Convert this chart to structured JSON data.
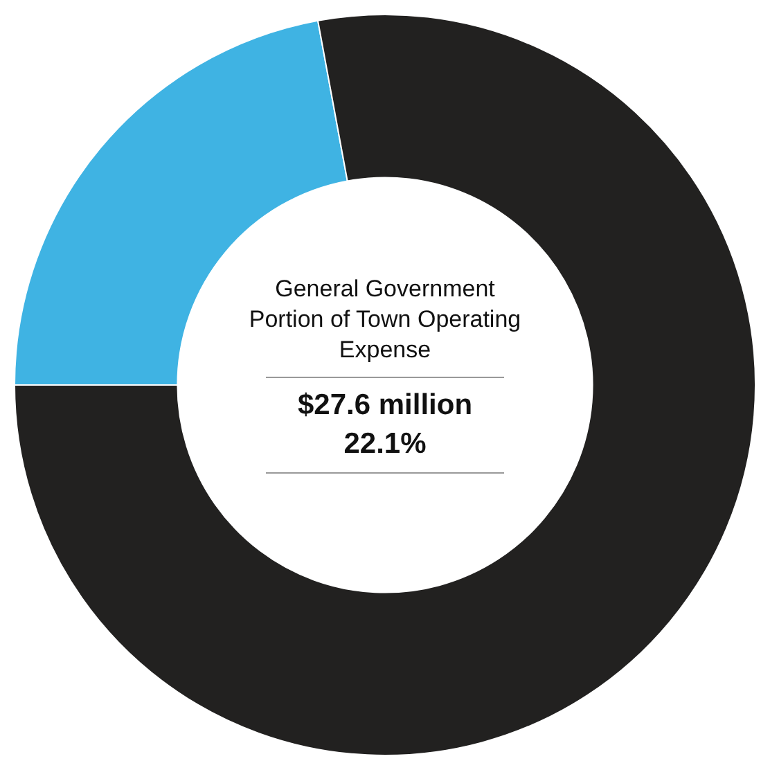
{
  "chart_data": {
    "type": "donut",
    "categories": [
      null,
      null
    ],
    "values": [
      22.1,
      77.9
    ],
    "colors": [
      "#3fb3e3",
      "#222120"
    ],
    "annotations": [
      "General Government Portion of Town Operating Expense",
      "$27.6 million",
      "22.1%"
    ]
  }
}
